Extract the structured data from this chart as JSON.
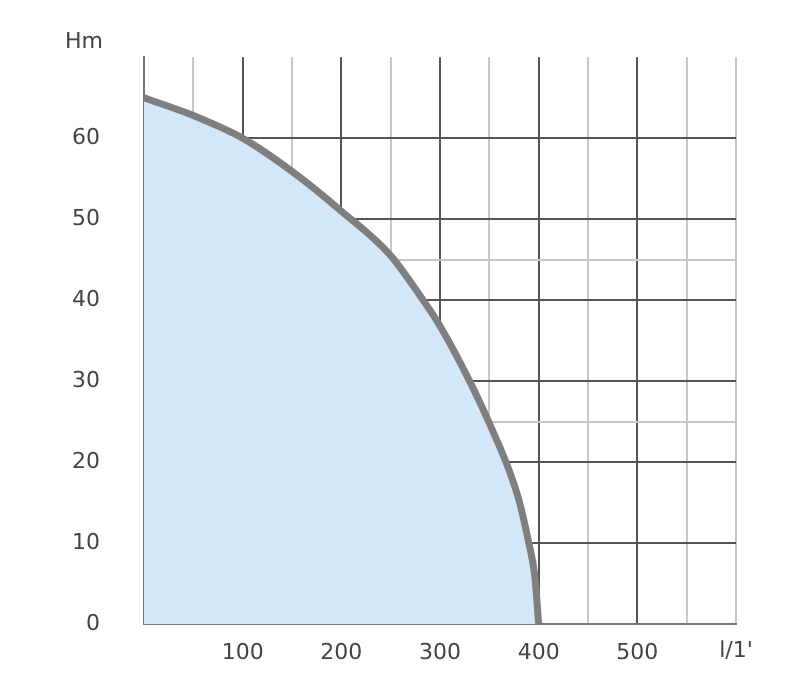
{
  "chart_data": {
    "type": "area",
    "xlabel": "l/1'",
    "ylabel": "Hm",
    "x": [
      0,
      50,
      100,
      150,
      200,
      250,
      280,
      300,
      330,
      350,
      370,
      380,
      390,
      396,
      400
    ],
    "series": [
      {
        "color": "#d3e7f8",
        "values": [
          65,
          62.8,
          60,
          55.9,
          51,
          45.5,
          40.5,
          36.8,
          30,
          24.8,
          19,
          15.3,
          10,
          6,
          0
        ]
      }
    ],
    "xlim": [
      0,
      600
    ],
    "ylim": [
      0,
      70
    ],
    "xticks": [
      {
        "value": 0,
        "label": null
      },
      {
        "value": 50,
        "label": null
      },
      100,
      {
        "value": 150,
        "label": null
      },
      200,
      {
        "value": 250,
        "label": null
      },
      300,
      {
        "value": 350,
        "label": null
      },
      400,
      {
        "value": 450,
        "label": null
      },
      500,
      {
        "value": 550,
        "label": null
      },
      {
        "value": 600,
        "label": null
      }
    ],
    "yticks": [
      0,
      10,
      20,
      {
        "value": 25,
        "label": null
      },
      30,
      40,
      {
        "value": 45,
        "label": null
      },
      50,
      60
    ],
    "grid": true,
    "marker": "none"
  }
}
